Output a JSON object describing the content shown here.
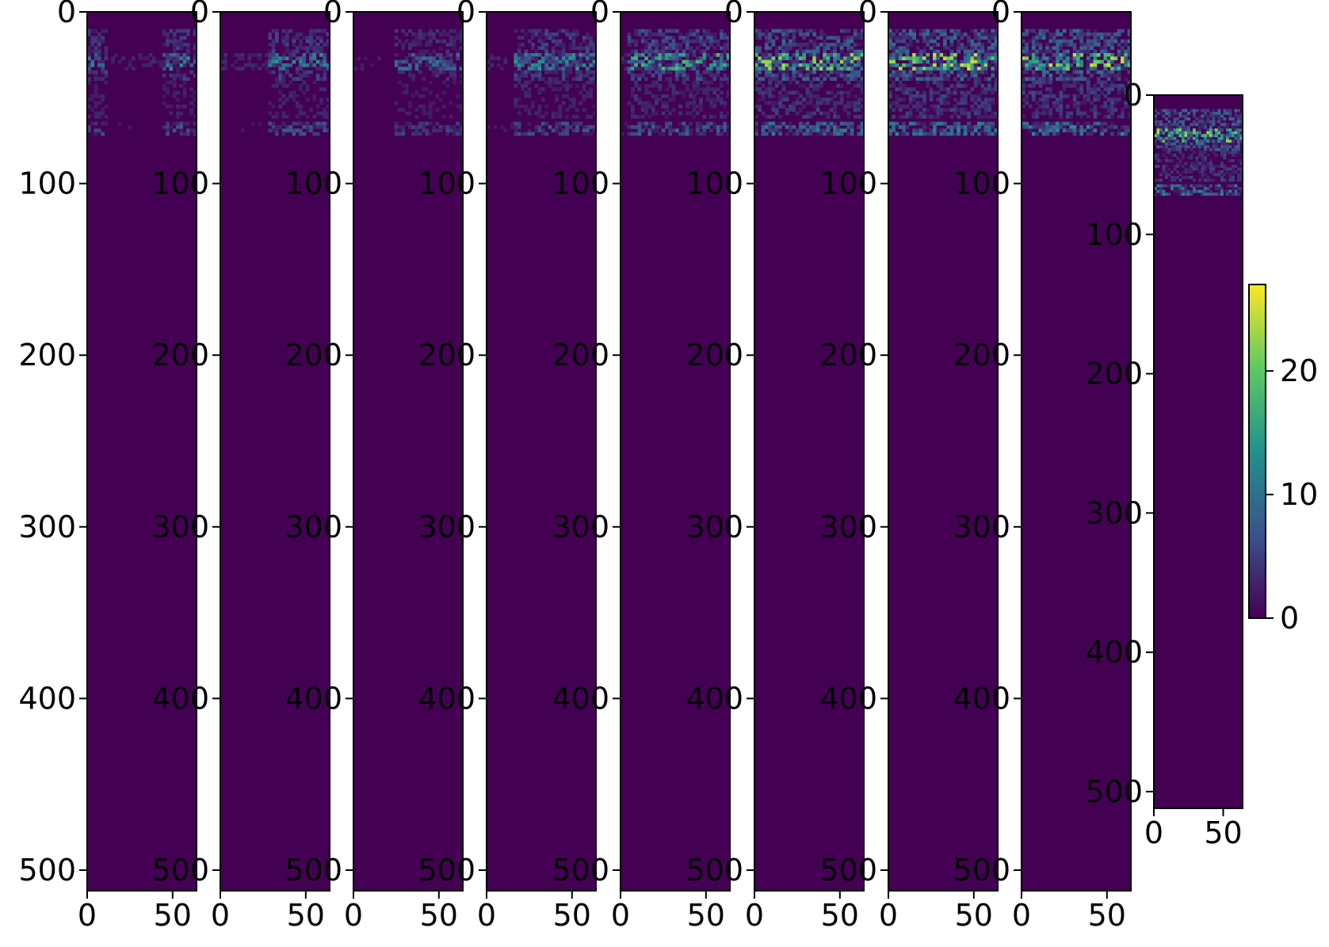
{
  "chart_data": {
    "type": "heatmap",
    "colormap": "viridis",
    "colormap_stops": [
      "#440154",
      "#3b528b",
      "#21918c",
      "#5ec962",
      "#fde725"
    ],
    "background_color": "#440154",
    "grid": false,
    "y_axis": "inverted",
    "colorbar": {
      "range": [
        0,
        27
      ],
      "ticks": [
        0,
        10,
        20
      ],
      "tick_labels": [
        "0",
        "10",
        "20"
      ]
    },
    "panels": [
      {
        "id": "panel-1",
        "xlim": [
          0,
          64
        ],
        "ylim": [
          512,
          0
        ],
        "xticks": [
          0,
          50
        ],
        "xtick_labels": [
          "0",
          "50"
        ],
        "yticks": [
          0,
          100,
          200,
          300,
          400,
          500
        ],
        "ytick_labels": [
          "0",
          "100",
          "200",
          "300",
          "400",
          "500"
        ],
        "energy": 0.55,
        "hot_columns": [
          [
            0,
            12
          ],
          [
            44,
            64
          ]
        ]
      },
      {
        "id": "panel-2",
        "xlim": [
          0,
          64
        ],
        "ylim": [
          512,
          0
        ],
        "xticks": [
          0,
          50
        ],
        "xtick_labels": [
          "0",
          "50"
        ],
        "yticks": [
          0,
          100,
          200,
          300,
          400,
          500
        ],
        "ytick_labels": [
          "0",
          "100",
          "200",
          "300",
          "400",
          "500"
        ],
        "energy": 0.6,
        "hot_columns": [
          [
            28,
            64
          ]
        ]
      },
      {
        "id": "panel-3",
        "xlim": [
          0,
          64
        ],
        "ylim": [
          512,
          0
        ],
        "xticks": [
          0,
          50
        ],
        "xtick_labels": [
          "0",
          "50"
        ],
        "yticks": [
          0,
          100,
          200,
          300,
          400,
          500
        ],
        "ytick_labels": [
          "0",
          "100",
          "200",
          "300",
          "400",
          "500"
        ],
        "energy": 0.45,
        "hot_columns": [
          [
            24,
            64
          ]
        ]
      },
      {
        "id": "panel-4",
        "xlim": [
          0,
          64
        ],
        "ylim": [
          512,
          0
        ],
        "xticks": [
          0,
          50
        ],
        "xtick_labels": [
          "0",
          "50"
        ],
        "yticks": [
          0,
          100,
          200,
          300,
          400,
          500
        ],
        "ytick_labels": [
          "0",
          "100",
          "200",
          "300",
          "400",
          "500"
        ],
        "energy": 0.6,
        "hot_columns": [
          [
            16,
            64
          ]
        ]
      },
      {
        "id": "panel-5",
        "xlim": [
          0,
          64
        ],
        "ylim": [
          512,
          0
        ],
        "xticks": [
          0,
          50
        ],
        "xtick_labels": [
          "0",
          "50"
        ],
        "yticks": [
          0,
          100,
          200,
          300,
          400,
          500
        ],
        "ytick_labels": [
          "0",
          "100",
          "200",
          "300",
          "400",
          "500"
        ],
        "energy": 0.75,
        "hot_columns": [
          [
            4,
            64
          ]
        ]
      },
      {
        "id": "panel-6",
        "xlim": [
          0,
          64
        ],
        "ylim": [
          512,
          0
        ],
        "xticks": [
          0,
          50
        ],
        "xtick_labels": [
          "0",
          "50"
        ],
        "yticks": [
          0,
          100,
          200,
          300,
          400,
          500
        ],
        "ytick_labels": [
          "0",
          "100",
          "200",
          "300",
          "400",
          "500"
        ],
        "energy": 0.95,
        "hot_columns": [
          [
            0,
            64
          ]
        ]
      },
      {
        "id": "panel-7",
        "xlim": [
          0,
          64
        ],
        "ylim": [
          512,
          0
        ],
        "xticks": [
          0,
          50
        ],
        "xtick_labels": [
          "0",
          "50"
        ],
        "yticks": [
          0,
          100,
          200,
          300,
          400,
          500
        ],
        "ytick_labels": [
          "0",
          "100",
          "200",
          "300",
          "400",
          "500"
        ],
        "energy": 1.0,
        "hot_columns": [
          [
            0,
            64
          ]
        ]
      },
      {
        "id": "panel-8",
        "xlim": [
          0,
          64
        ],
        "ylim": [
          512,
          0
        ],
        "xticks": [
          0,
          50
        ],
        "xtick_labels": [
          "0",
          "50"
        ],
        "yticks": [
          0,
          100,
          200,
          300,
          400,
          500
        ],
        "ytick_labels": [
          "0",
          "100",
          "200",
          "300",
          "400",
          "500"
        ],
        "energy": 1.0,
        "hot_columns": [
          [
            0,
            64
          ]
        ]
      },
      {
        "id": "panel-9",
        "xlim": [
          0,
          64
        ],
        "ylim": [
          512,
          0
        ],
        "xticks": [
          0,
          50
        ],
        "xtick_labels": [
          "0",
          "50"
        ],
        "yticks": [
          0,
          100,
          200,
          300,
          400,
          500
        ],
        "ytick_labels": [
          "0",
          "100",
          "200",
          "300",
          "400",
          "500"
        ],
        "energy": 0.95,
        "hot_columns": [
          [
            0,
            64
          ]
        ]
      }
    ],
    "intensity_bands": [
      {
        "rows": [
          10,
          40
        ],
        "level": 0.35
      },
      {
        "rows": [
          24,
          34
        ],
        "level": 0.85
      },
      {
        "rows": [
          40,
          62
        ],
        "level": 0.2
      },
      {
        "rows": [
          64,
          72
        ],
        "level": 0.45
      },
      {
        "rows": [
          72,
          100
        ],
        "level": 0.05
      }
    ]
  }
}
